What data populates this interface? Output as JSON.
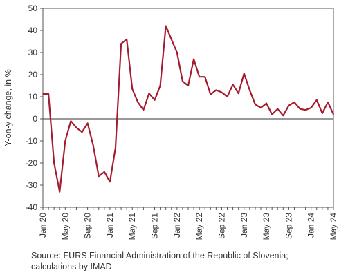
{
  "chart_data": {
    "type": "line",
    "title": "",
    "xlabel": "",
    "ylabel": "Y-on-y change, in %",
    "ylim": [
      -40,
      50
    ],
    "yticks": [
      -40,
      -30,
      -20,
      -10,
      0,
      10,
      20,
      30,
      40,
      50
    ],
    "x_tick_labels": [
      "Jan 20",
      "May 20",
      "Sep 20",
      "Jan 21",
      "May 21",
      "Sep 21",
      "Jan 22",
      "May 22",
      "Sep 22",
      "Jan 23",
      "May 23",
      "Sep 23",
      "Jan 24",
      "May 24"
    ],
    "x": [
      "Jan 20",
      "Feb 20",
      "Mar 20",
      "Apr 20",
      "May 20",
      "Jun 20",
      "Jul 20",
      "Aug 20",
      "Sep 20",
      "Oct 20",
      "Nov 20",
      "Dec 20",
      "Jan 21",
      "Feb 21",
      "Mar 21",
      "Apr 21",
      "May 21",
      "Jun 21",
      "Jul 21",
      "Aug 21",
      "Sep 21",
      "Oct 21",
      "Nov 21",
      "Dec 21",
      "Jan 22",
      "Feb 22",
      "Mar 22",
      "Apr 22",
      "May 22",
      "Jun 22",
      "Jul 22",
      "Aug 22",
      "Sep 22",
      "Oct 22",
      "Nov 22",
      "Dec 22",
      "Jan 23",
      "Feb 23",
      "Mar 23",
      "Apr 23",
      "May 23",
      "Jun 23",
      "Jul 23",
      "Aug 23",
      "Sep 23",
      "Oct 23",
      "Nov 23",
      "Dec 23",
      "Jan 24",
      "Feb 24",
      "Mar 24",
      "Apr 24",
      "May 24"
    ],
    "series": [
      {
        "name": "",
        "color": "#a51c30",
        "values": [
          11.3,
          11.3,
          -20,
          -33,
          -10,
          -1,
          -4,
          -6,
          -2,
          -12,
          -26,
          -24,
          -28.5,
          -13,
          34,
          36,
          13.5,
          7.5,
          4,
          11.5,
          8.5,
          15,
          42,
          36,
          30,
          17,
          15,
          27,
          19,
          19,
          11,
          13,
          12,
          10,
          15.5,
          11.5,
          20.5,
          13,
          6.5,
          5,
          7,
          2,
          4.5,
          1.5,
          6,
          7.5,
          4.5,
          4,
          5,
          8.5,
          2.5,
          7.5,
          2
        ]
      }
    ],
    "grid": false,
    "zero_line": true
  },
  "source_note": "Source: FURS Financial Administration of the Republic of Slovenia; calculations by IMAD."
}
